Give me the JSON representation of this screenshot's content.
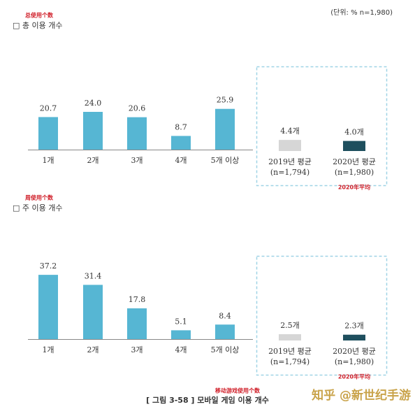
{
  "unit_note": "(단위: % n=1,980)",
  "caption": "[ 그림 3-58 ] 모바일 게임 이용 개수",
  "caption_note": "移动游戏使用个数",
  "watermark": "知乎 @新世纪手游",
  "chart_data": [
    {
      "type": "bar",
      "annotation": "总使用个数",
      "title": "□ 총 이용 개수",
      "categories": [
        "1개",
        "2개",
        "3개",
        "4개",
        "5개 이상"
      ],
      "values": [
        20.7,
        24.0,
        20.6,
        8.7,
        25.9
      ],
      "value_labels": [
        "20.7",
        "24.0",
        "20.6",
        "8.7",
        "25.9"
      ],
      "color": "#56b6d3"
    },
    {
      "type": "bar",
      "annotation": "2020年平均",
      "categories": [
        "2019년 평균",
        "2020년 평균"
      ],
      "n_labels": [
        "(n=1,794)",
        "(n=1,980)"
      ],
      "values": [
        4.4,
        4.0
      ],
      "value_labels": [
        "4.4개",
        "4.0개"
      ],
      "colors": [
        "#d6d6d6",
        "#1e4f5e"
      ]
    },
    {
      "type": "bar",
      "annotation": "周使用个数",
      "title": "□ 주 이용 개수",
      "categories": [
        "1개",
        "2개",
        "3개",
        "4개",
        "5개 이상"
      ],
      "values": [
        37.2,
        31.4,
        17.8,
        5.1,
        8.4
      ],
      "value_labels": [
        "37.2",
        "31.4",
        "17.8",
        "5.1",
        "8.4"
      ],
      "color": "#56b6d3"
    },
    {
      "type": "bar",
      "annotation": "2020年平均",
      "categories": [
        "2019년 평균",
        "2020년 평균"
      ],
      "n_labels": [
        "(n=1,794)",
        "(n=1,980)"
      ],
      "values": [
        2.5,
        2.3
      ],
      "value_labels": [
        "2.5개",
        "2.3개"
      ],
      "colors": [
        "#d6d6d6",
        "#1e4f5e"
      ]
    }
  ]
}
